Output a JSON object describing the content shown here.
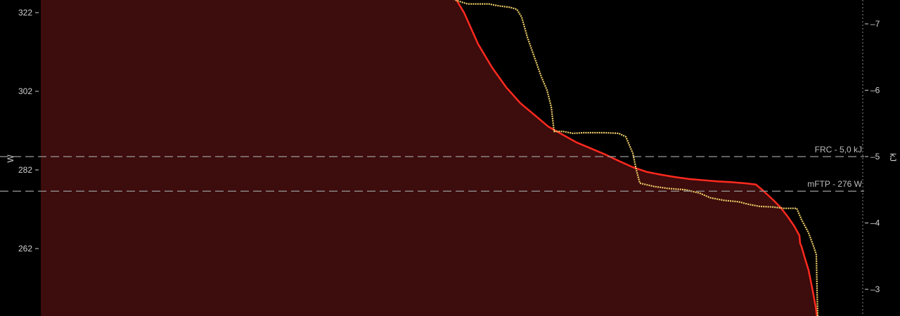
{
  "chart_data": {
    "type": "line",
    "left_axis": {
      "label": "W",
      "ticks": [
        322,
        302,
        282,
        262
      ],
      "range": [
        242,
        330
      ]
    },
    "right_axis": {
      "label": "kJ",
      "ticks": [
        -7,
        -6,
        -5,
        -4,
        -3
      ],
      "range": [
        -2.6,
        -7.4
      ]
    },
    "reference_lines": [
      {
        "label": "FRC - 5,0 kJ",
        "axis": "right",
        "value": -5.0
      },
      {
        "label": "mFTP - 276 W",
        "axis": "left",
        "value": 276.6
      }
    ],
    "series": [
      {
        "axis": "left",
        "color": "#ff2a1f",
        "fill": "#3d0c0c",
        "points": [
          [
            0,
            335
          ],
          [
            620,
            335
          ],
          [
            640,
            328
          ],
          [
            660,
            322
          ],
          [
            680,
            314
          ],
          [
            700,
            308
          ],
          [
            720,
            303
          ],
          [
            740,
            299
          ],
          [
            760,
            296
          ],
          [
            780,
            293
          ],
          [
            800,
            291
          ],
          [
            820,
            289
          ],
          [
            840,
            287.5
          ],
          [
            860,
            286
          ],
          [
            880,
            284.3
          ],
          [
            900,
            282.7
          ],
          [
            920,
            281.5
          ],
          [
            940,
            280.8
          ],
          [
            960,
            280.2
          ],
          [
            980,
            279.7
          ],
          [
            1000,
            279.4
          ],
          [
            1020,
            279.1
          ],
          [
            1040,
            278.9
          ],
          [
            1060,
            278.6
          ],
          [
            1075,
            278.3
          ],
          [
            1085,
            276.8
          ],
          [
            1100,
            274.3
          ],
          [
            1110,
            272.5
          ],
          [
            1120,
            270.2
          ],
          [
            1130,
            267.6
          ],
          [
            1137,
            265.3
          ],
          [
            1138,
            263.3
          ],
          [
            1140,
            262.5
          ],
          [
            1145,
            259.4
          ],
          [
            1150,
            256.5
          ],
          [
            1155,
            252.1
          ],
          [
            1160,
            247.3
          ],
          [
            1163,
            243.3
          ]
        ]
      },
      {
        "axis": "right",
        "color": "#f0cf6a",
        "points": [
          [
            630,
            7.44
          ],
          [
            650,
            7.35
          ],
          [
            665,
            7.3
          ],
          [
            695,
            7.3
          ],
          [
            710,
            7.27
          ],
          [
            725,
            7.25
          ],
          [
            735,
            7.22
          ],
          [
            742,
            7.1
          ],
          [
            750,
            6.8
          ],
          [
            760,
            6.5
          ],
          [
            770,
            6.2
          ],
          [
            778,
            6.0
          ],
          [
            784,
            5.75
          ],
          [
            788,
            5.38
          ],
          [
            800,
            5.38
          ],
          [
            815,
            5.35
          ],
          [
            830,
            5.36
          ],
          [
            860,
            5.36
          ],
          [
            880,
            5.35
          ],
          [
            890,
            5.3
          ],
          [
            900,
            5.05
          ],
          [
            905,
            4.8
          ],
          [
            910,
            4.6
          ],
          [
            930,
            4.55
          ],
          [
            950,
            4.52
          ],
          [
            975,
            4.5
          ],
          [
            995,
            4.45
          ],
          [
            1010,
            4.38
          ],
          [
            1030,
            4.34
          ],
          [
            1050,
            4.32
          ],
          [
            1065,
            4.28
          ],
          [
            1080,
            4.25
          ],
          [
            1100,
            4.24
          ],
          [
            1115,
            4.22
          ],
          [
            1133,
            4.22
          ],
          [
            1140,
            4.05
          ],
          [
            1150,
            3.85
          ],
          [
            1158,
            3.62
          ],
          [
            1161,
            3.52
          ],
          [
            1162,
            3.0
          ],
          [
            1163,
            2.6
          ]
        ]
      }
    ]
  }
}
